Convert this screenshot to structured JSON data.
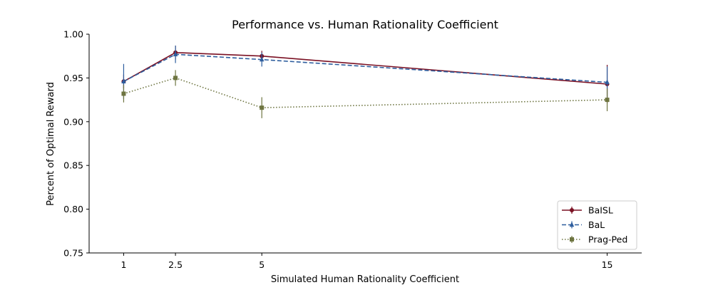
{
  "chart_data": {
    "type": "line",
    "title": "Performance vs. Human Rationality Coefficient",
    "xlabel": "Simulated Human Rationality Coefficient",
    "ylabel": "Percent of Optimal Reward",
    "x": [
      1,
      2.5,
      5,
      15
    ],
    "x_tick_labels": [
      "1",
      "2.5",
      "5",
      "15"
    ],
    "xlim": [
      0,
      16
    ],
    "ylim": [
      0.75,
      1.0
    ],
    "y_ticks": [
      0.75,
      0.8,
      0.85,
      0.9,
      0.95,
      1.0
    ],
    "y_tick_labels": [
      "0.75",
      "0.80",
      "0.85",
      "0.90",
      "0.95",
      "1.00"
    ],
    "grid": false,
    "legend_position": "lower-right",
    "series": [
      {
        "name": "BaISL",
        "color": "#7a1023",
        "line_style": "solid",
        "marker": "circle",
        "values": [
          0.946,
          0.979,
          0.975,
          0.943
        ],
        "error": [
          0.008,
          0.008,
          0.006,
          0.022
        ]
      },
      {
        "name": "BaL",
        "color": "#2e5e9e",
        "line_style": "dashed",
        "marker": "triangle",
        "values": [
          0.946,
          0.977,
          0.971,
          0.945
        ],
        "error": [
          0.02,
          0.01,
          0.008,
          0.018
        ]
      },
      {
        "name": "Prag-Ped",
        "color": "#6e7541",
        "line_style": "dotted",
        "marker": "square",
        "values": [
          0.932,
          0.95,
          0.916,
          0.925
        ],
        "error": [
          0.01,
          0.009,
          0.012,
          0.013
        ]
      }
    ]
  }
}
